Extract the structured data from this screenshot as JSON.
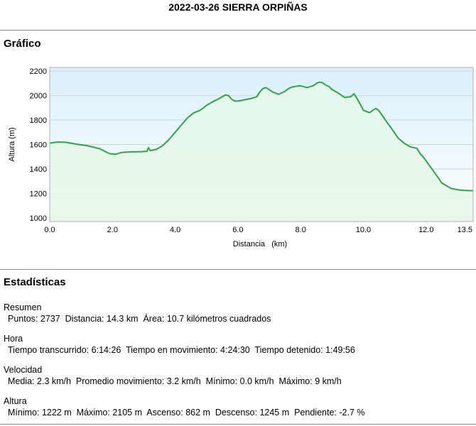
{
  "page": {
    "title": "2022-03-26 SIERRA ORPIÑAS"
  },
  "chart_section": {
    "title": "Gráfico"
  },
  "chart_data": {
    "type": "area",
    "xlabel": "Distancia   (km)",
    "ylabel": "Altura (m)",
    "xlim": [
      0,
      13.5
    ],
    "ylim": [
      970,
      2230
    ],
    "x_ticks": [
      "0.0",
      "2.0",
      "4.0",
      "6.0",
      "8.0",
      "10.0",
      "12.0",
      "13.5"
    ],
    "x_tick_values": [
      0,
      2,
      4,
      6,
      8,
      10,
      12,
      13.5
    ],
    "y_ticks": [
      "1000",
      "1200",
      "1400",
      "1600",
      "1800",
      "2000",
      "2200"
    ],
    "y_tick_values": [
      1000,
      1200,
      1400,
      1600,
      1800,
      2000,
      2200
    ],
    "grid": "horizontal",
    "line_color": "#2fa34a",
    "fill_color": "#e6f7e9",
    "series": [
      {
        "x": [
          0,
          0.1,
          0.25,
          0.5,
          0.8,
          1.2,
          1.6,
          1.9,
          2.1,
          2.3,
          2.6,
          2.9,
          3.1,
          3.15,
          3.2,
          3.4,
          3.6,
          3.8,
          4.0,
          4.2,
          4.4,
          4.6,
          4.8,
          5.0,
          5.2,
          5.4,
          5.6,
          5.7,
          5.8,
          5.9,
          6.0,
          6.2,
          6.4,
          6.6,
          6.7,
          6.8,
          6.9,
          7.1,
          7.3,
          7.5,
          7.6,
          7.7,
          7.9,
          8.0,
          8.2,
          8.4,
          8.5,
          8.6,
          8.7,
          8.8,
          8.9,
          9.0,
          9.2,
          9.4,
          9.6,
          9.7,
          9.8,
          10.0,
          10.2,
          10.3,
          10.4,
          10.5,
          10.7,
          10.9,
          11.1,
          11.3,
          11.5,
          11.6,
          11.7,
          11.8,
          11.9,
          12.1,
          12.3,
          12.5,
          12.8,
          13.0,
          13.2,
          13.5
        ],
        "y": [
          1610,
          1615,
          1620,
          1618,
          1605,
          1590,
          1565,
          1525,
          1520,
          1535,
          1540,
          1540,
          1545,
          1575,
          1550,
          1560,
          1590,
          1640,
          1700,
          1760,
          1820,
          1860,
          1880,
          1920,
          1950,
          1975,
          2005,
          2000,
          1970,
          1955,
          1955,
          1965,
          1975,
          1990,
          2030,
          2058,
          2065,
          2030,
          2010,
          2035,
          2055,
          2068,
          2078,
          2080,
          2065,
          2080,
          2100,
          2110,
          2105,
          2085,
          2075,
          2050,
          2020,
          1985,
          1990,
          2015,
          1975,
          1880,
          1860,
          1880,
          1895,
          1875,
          1800,
          1730,
          1655,
          1610,
          1580,
          1575,
          1570,
          1530,
          1500,
          1430,
          1360,
          1285,
          1240,
          1230,
          1225,
          1222
        ]
      }
    ]
  },
  "stats_section": {
    "title": "Estadísticas"
  },
  "stats": {
    "resumen": {
      "title": "Resumen",
      "puntos_label": "Puntos:",
      "puntos": "2737",
      "distancia_label": "Distancia:",
      "distancia": "14.3 km",
      "area_label": "Área:",
      "area": "10.7 kilómetros cuadrados"
    },
    "hora": {
      "title": "Hora",
      "transcurrido_label": "Tiempo transcurrido:",
      "transcurrido": "6:14:26",
      "movimiento_label": "Tiempo en movimiento:",
      "movimiento": "4:24:30",
      "detenido_label": "Tiempo detenido:",
      "detenido": "1:49:56"
    },
    "velocidad": {
      "title": "Velocidad",
      "media_label": "Media:",
      "media": "2.3 km/h",
      "promedio_label": "Promedio movimiento:",
      "promedio": "3.2 km/h",
      "minimo_label": "Mínimo:",
      "minimo": "0.0 km/h",
      "maximo_label": "Máximo:",
      "maximo": "9 km/h"
    },
    "altura": {
      "title": "Altura",
      "minimo_label": "Mínimo:",
      "minimo": "1222 m",
      "maximo_label": "Máximo:",
      "maximo": "2105 m",
      "ascenso_label": "Ascenso:",
      "ascenso": "862 m",
      "descenso_label": "Descenso:",
      "descenso": "1245 m",
      "pendiente_label": "Pendiente:",
      "pendiente": "-2.7 %"
    }
  }
}
